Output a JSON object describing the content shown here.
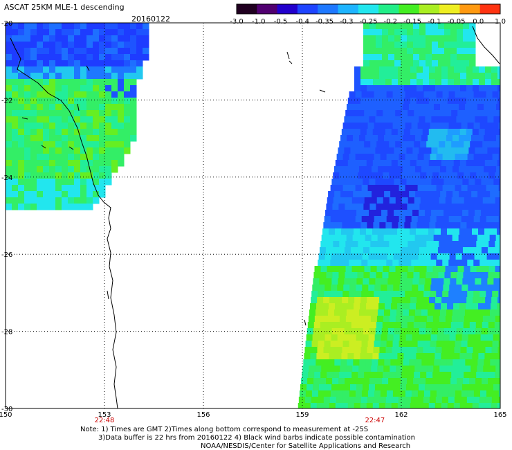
{
  "header": {
    "title": "ASCAT 25KM MLE-1 descending",
    "date": "20160122"
  },
  "colorbar": {
    "labels": [
      "-3.0",
      "-1.0",
      "-0.5",
      "-0.4",
      "-0.35",
      "-0.3",
      "-0.25",
      "-0.2",
      "-0.15",
      "-0.1",
      "-0.05",
      "0.0",
      "1.0"
    ],
    "colors": [
      "#200020",
      "#500070",
      "#2200cc",
      "#1e44ff",
      "#1e78ff",
      "#1eb4ff",
      "#22e6ee",
      "#22ee88",
      "#44ee22",
      "#aaee22",
      "#eeee22",
      "#ff9911",
      "#ff3311"
    ]
  },
  "map": {
    "lon_range": [
      150,
      165
    ],
    "lat_range": [
      -30,
      -20
    ],
    "lon_ticks": [
      "150",
      "153",
      "156",
      "159",
      "162",
      "165"
    ],
    "lat_ticks": [
      "-20",
      "-22",
      "-24",
      "-26",
      "-28",
      "-30"
    ],
    "gridlines": true,
    "pass_times": [
      {
        "time": "22:48",
        "lon": 153,
        "color": "#cc0000"
      },
      {
        "time": "22:47",
        "lon": 161.2,
        "color": "#cc0000"
      }
    ]
  },
  "notes": [
    "Note: 1) Times are GMT 2)Times along bottom correspond to measurement at -25S",
    "3)Data buffer is 22 hrs from 20160122 4) Black wind barbs indicate possible contamination",
    "NOAA/NESDIS/Center for Satellite Applications and Research"
  ]
}
